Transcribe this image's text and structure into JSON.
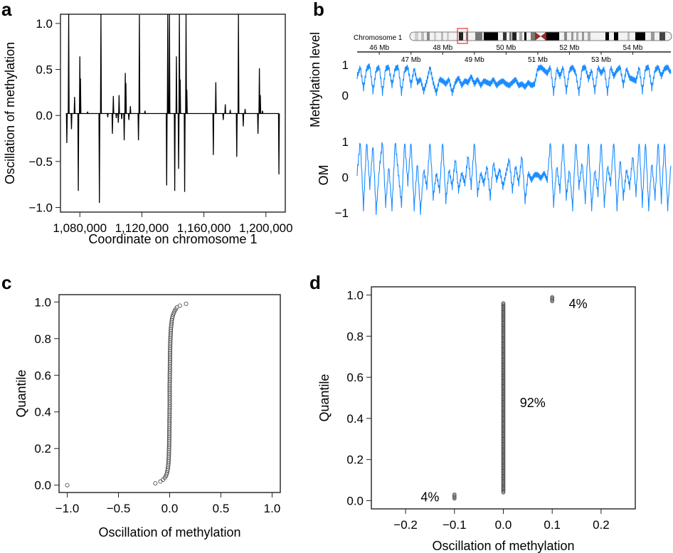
{
  "panels": {
    "a": "a",
    "b": "b",
    "c": "c",
    "d": "d"
  },
  "chart_data": [
    {
      "panel": "a",
      "type": "line",
      "xlabel": "Coordinate on chromosome 1",
      "ylabel": "Oscillation of methylation",
      "xlim": [
        1067500,
        1212500
      ],
      "ylim": [
        -1.05,
        1.1
      ],
      "xticks": [
        {
          "v": 1080000,
          "label": "1,080,000"
        },
        {
          "v": 1120000,
          "label": "1,120,000"
        },
        {
          "v": 1160000,
          "label": "1,160,000"
        },
        {
          "v": 1200000,
          "label": "1,200,000"
        }
      ],
      "yticks": [
        {
          "v": 1.0,
          "label": "1.0"
        },
        {
          "v": 0.5,
          "label": "0.5"
        },
        {
          "v": 0.0,
          "label": "0.0"
        },
        {
          "v": -0.5,
          "label": "−0.5"
        },
        {
          "v": -1.0,
          "label": "−1.0"
        }
      ],
      "color": "#000000",
      "spikes": [
        [
          1071600,
          -0.32
        ],
        [
          1072800,
          1.1
        ],
        [
          1074600,
          -0.17
        ],
        [
          1076600,
          0.18
        ],
        [
          1079000,
          -0.84
        ],
        [
          1080000,
          0.62
        ],
        [
          1080400,
          0.38
        ],
        [
          1085000,
          0.02
        ],
        [
          1092600,
          -0.97
        ],
        [
          1093600,
          1.1
        ],
        [
          1098000,
          -0.04
        ],
        [
          1101000,
          -0.22
        ],
        [
          1101600,
          0.19
        ],
        [
          1103500,
          -0.05
        ],
        [
          1104800,
          -0.1
        ],
        [
          1105300,
          0.2
        ],
        [
          1107000,
          -0.06
        ],
        [
          1108600,
          -0.29
        ],
        [
          1109300,
          0.44
        ],
        [
          1109700,
          0.33
        ],
        [
          1111600,
          -0.07
        ],
        [
          1112600,
          0.08
        ],
        [
          1117800,
          -0.29
        ],
        [
          1118400,
          1.07
        ],
        [
          1122000,
          0.03
        ],
        [
          1136000,
          -0.78
        ],
        [
          1136700,
          1.1
        ],
        [
          1137800,
          1.1
        ],
        [
          1141200,
          -0.84
        ],
        [
          1142300,
          0.62
        ],
        [
          1143700,
          -0.6
        ],
        [
          1144200,
          1.1
        ],
        [
          1144700,
          0.37
        ],
        [
          1147600,
          -0.85
        ],
        [
          1148500,
          1.1
        ],
        [
          1149000,
          0.26
        ],
        [
          1166100,
          -0.45
        ],
        [
          1167700,
          0.34
        ],
        [
          1172500,
          -0.07
        ],
        [
          1173800,
          0.1
        ],
        [
          1177000,
          0.04
        ],
        [
          1181200,
          -0.47
        ],
        [
          1182300,
          1.1
        ],
        [
          1185400,
          -0.14
        ],
        [
          1186600,
          0.05
        ],
        [
          1194900,
          -0.22
        ],
        [
          1195800,
          0.49
        ],
        [
          1196400,
          0.2
        ],
        [
          1197800,
          0.03
        ],
        [
          1208400,
          -0.66
        ]
      ]
    },
    {
      "panel": "b",
      "type": "line",
      "ideogram_label": "Chromosome 1",
      "xlim_mb": [
        45.3,
        55.2
      ],
      "mb_ticks": [
        {
          "v": 46,
          "label": "46 Mb"
        },
        {
          "v": 47,
          "label": "47 Mb"
        },
        {
          "v": 48,
          "label": "48 Mb"
        },
        {
          "v": 49,
          "label": "49 Mb"
        },
        {
          "v": 50,
          "label": "50 Mb"
        },
        {
          "v": 51,
          "label": "51 Mb"
        },
        {
          "v": 52,
          "label": "52 Mb"
        },
        {
          "v": 53,
          "label": "53 Mb"
        },
        {
          "v": 54,
          "label": "54 Mb"
        }
      ],
      "color": "#1a8cff",
      "highlight_color": "#e8302a",
      "methylation": {
        "ylabel": "Methylation level",
        "yticks": [
          {
            "v": 1,
            "label": "1"
          },
          {
            "v": 0,
            "label": "0"
          }
        ],
        "values": [
          0.6,
          0.9,
          0.2,
          0.85,
          0.95,
          0.1,
          0.8,
          0.9,
          0.05,
          0.85,
          0.9,
          0.3,
          0.85,
          0.9,
          0.05,
          0.8,
          0.9,
          0.3,
          0.85,
          0.4,
          0.5,
          0.1,
          0.45,
          0.9,
          0.4,
          0.05,
          0.5,
          0.45,
          0.35,
          0.5,
          0.05,
          0.4,
          0.55,
          0.3,
          0.45,
          0.4,
          0.6,
          0.35,
          0.5,
          0.3,
          0.45,
          0.4,
          0.35,
          0.5,
          0.3,
          0.4,
          0.45,
          0.35,
          0.3,
          0.4,
          0.5,
          0.3,
          0.35,
          0.25,
          0.4,
          0.3,
          0.35,
          0.85,
          0.9,
          0.8,
          0.7,
          0.9,
          0.05,
          0.85,
          0.6,
          0.9,
          0.1,
          0.8,
          0.9,
          0.7,
          0.05,
          0.85,
          0.9,
          0.5,
          0.8,
          0.1,
          0.9,
          0.7,
          0.85,
          0.05,
          0.9,
          0.6,
          0.8,
          0.9,
          0.3,
          0.85,
          0.55,
          0.5,
          0.45,
          0.9,
          0.1,
          0.85,
          0.9,
          0.2,
          0.8,
          0.9,
          0.6,
          0.85,
          0.9,
          0.7
        ]
      },
      "om": {
        "ylabel": "OM",
        "yticks": [
          {
            "v": 1,
            "label": "1"
          },
          {
            "v": 0,
            "label": "0"
          },
          {
            "v": -1,
            "label": "−1"
          }
        ],
        "values": [
          0.1,
          1,
          -0.9,
          1,
          -0.3,
          0.9,
          -1,
          0.2,
          1,
          -0.8,
          0.3,
          -0.9,
          1,
          0.1,
          -0.8,
          1,
          -0.2,
          1,
          -0.9,
          0.4,
          -1,
          0.2,
          -0.3,
          1,
          -0.6,
          0.1,
          -0.4,
          1,
          -0.7,
          0.2,
          -0.3,
          0.5,
          -0.4,
          0.1,
          -0.2,
          0.6,
          -0.3,
          1,
          -0.5,
          0.1,
          -0.2,
          0.3,
          -0.6,
          0.4,
          -0.1,
          0.2,
          -0.3,
          0.1,
          0.5,
          -0.4,
          0.3,
          -0.2,
          0.6,
          -0.7,
          0.1,
          -0.1,
          0.05,
          0.05,
          -0.05,
          0.1,
          -0.1,
          1,
          -0.8,
          0.3,
          -0.4,
          1,
          -0.6,
          0.2,
          -0.9,
          1,
          -0.3,
          0.4,
          -0.7,
          1,
          -0.9,
          0.2,
          -0.5,
          1,
          -0.8,
          0.3,
          -0.2,
          1,
          -0.9,
          0.5,
          -0.6,
          0.2,
          -0.3,
          0.6,
          -0.5,
          1,
          -0.8,
          1,
          -0.9,
          0.4,
          -0.6,
          1,
          -0.7,
          1,
          -0.9,
          0.3
        ]
      }
    },
    {
      "panel": "c",
      "type": "scatter",
      "xlabel": "Oscillation of methylation",
      "ylabel": "Quantile",
      "xlim": [
        -1.08,
        1.08
      ],
      "ylim": [
        -0.04,
        1.04
      ],
      "xticks": [
        {
          "v": -1.0,
          "label": "−1.0"
        },
        {
          "v": -0.5,
          "label": "−0.5"
        },
        {
          "v": 0.0,
          "label": "0.0"
        },
        {
          "v": 0.5,
          "label": "0.5"
        },
        {
          "v": 1.0,
          "label": "1.0"
        }
      ],
      "yticks": [
        {
          "v": 0.0,
          "label": "0.0"
        },
        {
          "v": 0.2,
          "label": "0.2"
        },
        {
          "v": 0.4,
          "label": "0.4"
        },
        {
          "v": 0.6,
          "label": "0.6"
        },
        {
          "v": 0.8,
          "label": "0.8"
        },
        {
          "v": 1.0,
          "label": "1.0"
        }
      ],
      "quantile_step": 0.01,
      "x_values": [
        -1.0,
        -0.14,
        -0.09,
        -0.065,
        -0.048,
        -0.037,
        -0.03,
        -0.025,
        -0.021,
        -0.018,
        -0.016,
        -0.014,
        -0.012,
        -0.011,
        -0.01,
        -0.009,
        -0.008,
        -0.008,
        -0.007,
        -0.007,
        -0.006,
        -0.006,
        -0.005,
        -0.005,
        -0.005,
        -0.004,
        -0.004,
        -0.004,
        -0.003,
        -0.003,
        -0.003,
        -0.003,
        -0.002,
        -0.002,
        -0.002,
        -0.002,
        -0.002,
        -0.001,
        -0.001,
        -0.001,
        -0.001,
        -0.001,
        0,
        0,
        0,
        0,
        0,
        0,
        0,
        0,
        0,
        0,
        0,
        0,
        0,
        0,
        0,
        0.001,
        0.001,
        0.001,
        0.001,
        0.001,
        0.002,
        0.002,
        0.002,
        0.002,
        0.002,
        0.003,
        0.003,
        0.003,
        0.003,
        0.004,
        0.004,
        0.004,
        0.005,
        0.005,
        0.005,
        0.006,
        0.006,
        0.007,
        0.007,
        0.008,
        0.009,
        0.01,
        0.011,
        0.012,
        0.013,
        0.015,
        0.017,
        0.019,
        0.021,
        0.024,
        0.028,
        0.033,
        0.04,
        0.048,
        0.058,
        0.07,
        0.1,
        0.16
      ]
    },
    {
      "panel": "d",
      "type": "scatter",
      "xlabel": "Oscillation of methylation",
      "ylabel": "Quantile",
      "xlim": [
        -0.27,
        0.27
      ],
      "ylim": [
        -0.04,
        1.04
      ],
      "xticks": [
        {
          "v": -0.2,
          "label": "−0.2"
        },
        {
          "v": -0.1,
          "label": "−0.1"
        },
        {
          "v": 0.0,
          "label": "0.0"
        },
        {
          "v": 0.1,
          "label": "0.1"
        },
        {
          "v": 0.2,
          "label": "0.2"
        }
      ],
      "yticks": [
        {
          "v": 0.0,
          "label": "0.0"
        },
        {
          "v": 0.2,
          "label": "0.2"
        },
        {
          "v": 0.4,
          "label": "0.4"
        },
        {
          "v": 0.6,
          "label": "0.6"
        },
        {
          "v": 0.8,
          "label": "0.8"
        },
        {
          "v": 1.0,
          "label": "1.0"
        }
      ],
      "groups": [
        {
          "x": -0.1,
          "quantile_range": [
            0.01,
            0.03
          ]
        },
        {
          "x": 0.0,
          "quantile_range": [
            0.04,
            0.96
          ]
        },
        {
          "x": 0.1,
          "quantile_range": [
            0.97,
            0.99
          ]
        }
      ],
      "annotations": [
        {
          "text": "4%",
          "x": -0.15,
          "y": 0.02
        },
        {
          "text": "92%",
          "x": 0.06,
          "y": 0.48
        },
        {
          "text": "4%",
          "x": 0.153,
          "y": 0.96
        }
      ]
    }
  ]
}
